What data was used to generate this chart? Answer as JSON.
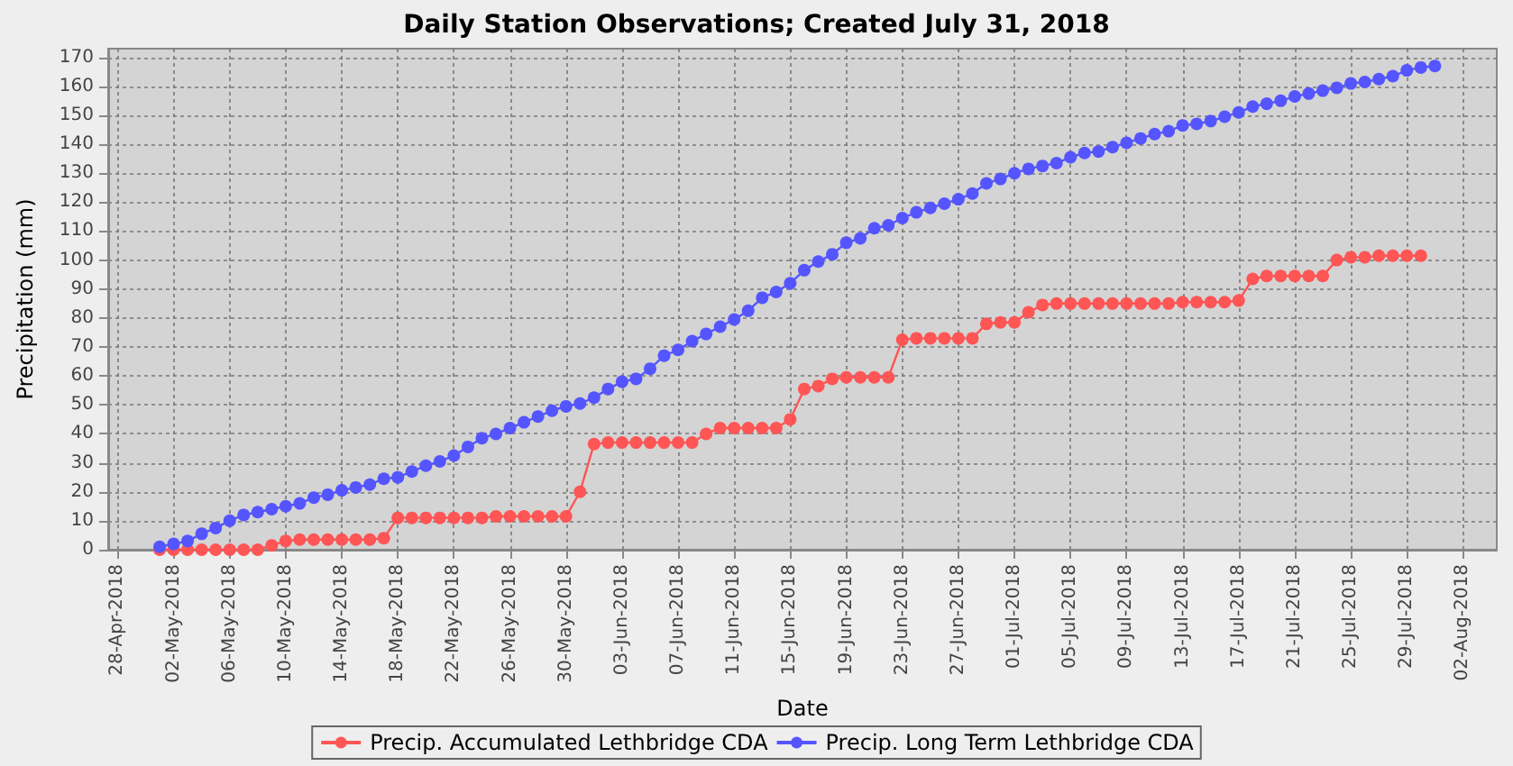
{
  "chart_data": {
    "type": "line",
    "title": "Daily Station Observations; Created July 31, 2018",
    "xlabel": "Date",
    "ylabel": "Precipitation (mm)",
    "x": [
      "2018-05-01",
      "2018-05-02",
      "2018-05-03",
      "2018-05-04",
      "2018-05-05",
      "2018-05-06",
      "2018-05-07",
      "2018-05-08",
      "2018-05-09",
      "2018-05-10",
      "2018-05-11",
      "2018-05-12",
      "2018-05-13",
      "2018-05-14",
      "2018-05-15",
      "2018-05-16",
      "2018-05-17",
      "2018-05-18",
      "2018-05-19",
      "2018-05-20",
      "2018-05-21",
      "2018-05-22",
      "2018-05-23",
      "2018-05-24",
      "2018-05-25",
      "2018-05-26",
      "2018-05-27",
      "2018-05-28",
      "2018-05-29",
      "2018-05-30",
      "2018-05-31",
      "2018-06-01",
      "2018-06-02",
      "2018-06-03",
      "2018-06-04",
      "2018-06-05",
      "2018-06-06",
      "2018-06-07",
      "2018-06-08",
      "2018-06-09",
      "2018-06-10",
      "2018-06-11",
      "2018-06-12",
      "2018-06-13",
      "2018-06-14",
      "2018-06-15",
      "2018-06-16",
      "2018-06-17",
      "2018-06-18",
      "2018-06-19",
      "2018-06-20",
      "2018-06-21",
      "2018-06-22",
      "2018-06-23",
      "2018-06-24",
      "2018-06-25",
      "2018-06-26",
      "2018-06-27",
      "2018-06-28",
      "2018-06-29",
      "2018-06-30",
      "2018-07-01",
      "2018-07-02",
      "2018-07-03",
      "2018-07-04",
      "2018-07-05",
      "2018-07-06",
      "2018-07-07",
      "2018-07-08",
      "2018-07-09",
      "2018-07-10",
      "2018-07-11",
      "2018-07-12",
      "2018-07-13",
      "2018-07-14",
      "2018-07-15",
      "2018-07-16",
      "2018-07-17",
      "2018-07-18",
      "2018-07-19",
      "2018-07-20",
      "2018-07-21",
      "2018-07-22",
      "2018-07-23",
      "2018-07-24",
      "2018-07-25",
      "2018-07-26",
      "2018-07-27",
      "2018-07-28",
      "2018-07-29",
      "2018-07-30",
      "2018-07-31"
    ],
    "series": [
      {
        "name": "Precip. Accumulated Lethbridge CDA",
        "color": "#ff5555",
        "values": [
          0,
          0,
          0,
          0,
          0,
          0,
          0,
          0,
          1.5,
          3,
          3.5,
          3.5,
          3.5,
          3.5,
          3.5,
          3.5,
          4,
          11,
          11,
          11,
          11,
          11,
          11,
          11,
          11.5,
          11.5,
          11.5,
          11.5,
          11.5,
          11.5,
          20,
          36.5,
          37,
          37,
          37,
          37,
          37,
          37,
          37,
          40,
          42,
          42,
          42,
          42,
          42,
          45,
          55.5,
          56.5,
          59,
          59.5,
          59.5,
          59.5,
          59.5,
          72.5,
          73,
          73,
          73,
          73,
          73,
          78,
          78.5,
          78.5,
          82,
          84.5,
          85,
          85,
          85,
          85,
          85,
          85,
          85,
          85,
          85,
          85.5,
          85.5,
          85.5,
          85.5,
          86,
          93.5,
          94.5,
          94.5,
          94.5,
          94.5,
          94.5,
          100,
          101,
          101,
          101.5,
          101.5,
          101.5,
          101.5,
          null
        ]
      },
      {
        "name": "Precip. Long Term Lethbridge CDA",
        "color": "#5555ff",
        "values": [
          1,
          2,
          3,
          5.5,
          7.5,
          10,
          12,
          13,
          14,
          15,
          16,
          18,
          19,
          20.5,
          21.5,
          22.5,
          24.5,
          25,
          27,
          29,
          30.5,
          32.5,
          35.5,
          38.5,
          40,
          42,
          44,
          46,
          48,
          49.5,
          50.5,
          52.5,
          55.5,
          58,
          59,
          62.5,
          67,
          69,
          72,
          74.5,
          77,
          79.5,
          82.5,
          87,
          89,
          92,
          96.5,
          99.5,
          102,
          106,
          107.5,
          111,
          112,
          114.5,
          116.5,
          118,
          119.5,
          121,
          123,
          126.5,
          128,
          130,
          131.5,
          132.5,
          133.5,
          135.5,
          137,
          137.5,
          139,
          140.5,
          142,
          143.5,
          144.5,
          146.5,
          147,
          148,
          149.5,
          151,
          153,
          154,
          155,
          156.5,
          157.5,
          158.5,
          159.5,
          161,
          161.5,
          162.5,
          163.5,
          165.5,
          166.5,
          167
        ]
      }
    ],
    "xlim": [
      "2018-04-27T08:00",
      "2018-08-04T10:00"
    ],
    "xticks": [
      {
        "value": "2018-04-28",
        "label": "28-Apr-2018"
      },
      {
        "value": "2018-05-02",
        "label": "02-May-2018"
      },
      {
        "value": "2018-05-06",
        "label": "06-May-2018"
      },
      {
        "value": "2018-05-10",
        "label": "10-May-2018"
      },
      {
        "value": "2018-05-14",
        "label": "14-May-2018"
      },
      {
        "value": "2018-05-18",
        "label": "18-May-2018"
      },
      {
        "value": "2018-05-22",
        "label": "22-May-2018"
      },
      {
        "value": "2018-05-26",
        "label": "26-May-2018"
      },
      {
        "value": "2018-05-30",
        "label": "30-May-2018"
      },
      {
        "value": "2018-06-03",
        "label": "03-Jun-2018"
      },
      {
        "value": "2018-06-07",
        "label": "07-Jun-2018"
      },
      {
        "value": "2018-06-11",
        "label": "11-Jun-2018"
      },
      {
        "value": "2018-06-15",
        "label": "15-Jun-2018"
      },
      {
        "value": "2018-06-19",
        "label": "19-Jun-2018"
      },
      {
        "value": "2018-06-23",
        "label": "23-Jun-2018"
      },
      {
        "value": "2018-06-27",
        "label": "27-Jun-2018"
      },
      {
        "value": "2018-07-01",
        "label": "01-Jul-2018"
      },
      {
        "value": "2018-07-05",
        "label": "05-Jul-2018"
      },
      {
        "value": "2018-07-09",
        "label": "09-Jul-2018"
      },
      {
        "value": "2018-07-13",
        "label": "13-Jul-2018"
      },
      {
        "value": "2018-07-17",
        "label": "17-Jul-2018"
      },
      {
        "value": "2018-07-21",
        "label": "21-Jul-2018"
      },
      {
        "value": "2018-07-25",
        "label": "25-Jul-2018"
      },
      {
        "value": "2018-07-29",
        "label": "29-Jul-2018"
      },
      {
        "value": "2018-08-02",
        "label": "02-Aug-2018"
      }
    ],
    "ylim": [
      0,
      173
    ],
    "yticks": [
      0,
      10,
      20,
      30,
      40,
      50,
      60,
      70,
      80,
      90,
      100,
      110,
      120,
      130,
      140,
      150,
      160,
      170
    ],
    "grid": true,
    "legend": "bottom",
    "marker": "circle",
    "line_style": "solid"
  }
}
